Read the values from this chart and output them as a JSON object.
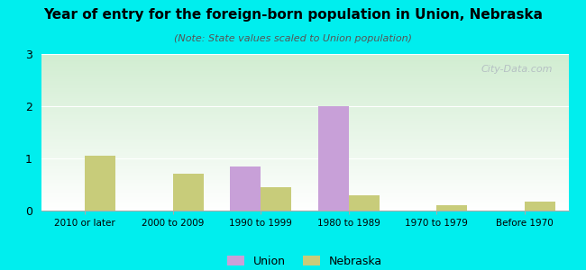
{
  "title": "Year of entry for the foreign-born population in Union, Nebraska",
  "subtitle": "(Note: State values scaled to Union population)",
  "categories": [
    "2010 or later",
    "2000 to 2009",
    "1990 to 1999",
    "1980 to 1989",
    "1970 to 1979",
    "Before 1970"
  ],
  "union_values": [
    0,
    0,
    0.85,
    2.0,
    0,
    0
  ],
  "nebraska_values": [
    1.05,
    0.7,
    0.45,
    0.3,
    0.1,
    0.17
  ],
  "union_color": "#C8A0D8",
  "nebraska_color": "#C8CC7A",
  "background_color": "#00EEEE",
  "ylim": [
    0,
    3
  ],
  "yticks": [
    0,
    1,
    2,
    3
  ],
  "bar_width": 0.35,
  "legend_union": "Union",
  "legend_nebraska": "Nebraska",
  "watermark": "City-Data.com"
}
